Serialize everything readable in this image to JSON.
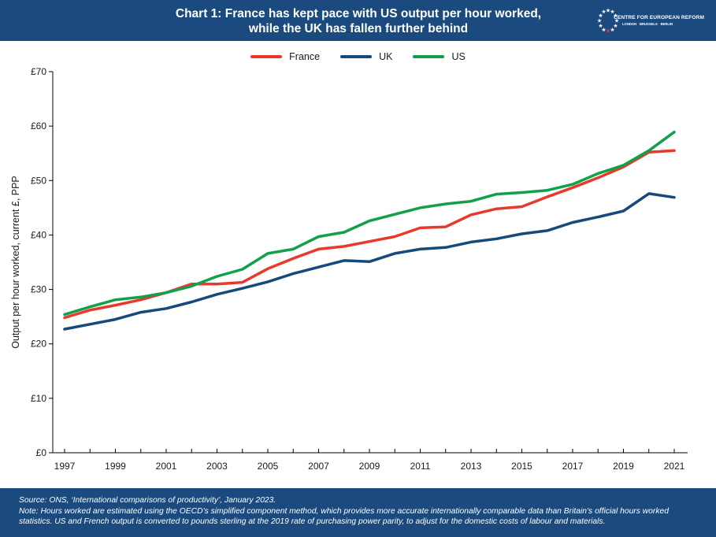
{
  "header": {
    "title_line1": "Chart 1: France has kept pace with US output per hour worked,",
    "title_line2": "while the UK has fallen further behind",
    "logo_name": "CENTRE FOR EUROPEAN REFORM",
    "logo_cities": [
      "LONDON",
      "BRUSSELS",
      "BERLIN"
    ]
  },
  "footer": {
    "source": "Source: ONS, ‘International comparisons of productivity’, January 2023.",
    "note": "Note: Hours worked are estimated using the OECD’s simplified component method, which provides more accurate internationally comparable data than Britain’s official hours worked statistics. US and French output is converted to pounds sterling at the 2019 rate of purchasing power parity, to adjust for the domestic costs of labour and materials."
  },
  "chart_data": {
    "type": "line",
    "title": "Chart 1: France has kept pace with US output per hour worked, while the UK has fallen further behind",
    "xlabel": "",
    "ylabel": "Output per hour worked, current £, PPP",
    "x": [
      1997,
      1998,
      1999,
      2000,
      2001,
      2002,
      2003,
      2004,
      2005,
      2006,
      2007,
      2008,
      2009,
      2010,
      2011,
      2012,
      2013,
      2014,
      2015,
      2016,
      2017,
      2018,
      2019,
      2020,
      2021
    ],
    "xticks": [
      "1997",
      "1999",
      "2001",
      "2003",
      "2005",
      "2007",
      "2009",
      "2011",
      "2013",
      "2015",
      "2017",
      "2019",
      "2021"
    ],
    "xlim": [
      1997,
      2021
    ],
    "ylim": [
      0,
      70
    ],
    "yticks": [
      0,
      10,
      20,
      30,
      40,
      50,
      60,
      70
    ],
    "ytick_labels": [
      "£0",
      "£10",
      "£20",
      "£30",
      "£40",
      "£50",
      "£60",
      "£70"
    ],
    "grid": false,
    "legend_position": "top-center",
    "series": [
      {
        "name": "France",
        "color": "#e8392d",
        "values": [
          24.8,
          26.2,
          27.1,
          28.1,
          29.4,
          31.0,
          31.0,
          31.3,
          33.8,
          35.7,
          37.4,
          37.9,
          38.8,
          39.7,
          41.3,
          41.5,
          43.7,
          44.8,
          45.2,
          47.0,
          48.7,
          50.5,
          52.5,
          55.2,
          55.5
        ]
      },
      {
        "name": "UK",
        "color": "#16497c",
        "values": [
          22.7,
          23.6,
          24.5,
          25.8,
          26.5,
          27.7,
          29.1,
          30.2,
          31.4,
          32.9,
          34.1,
          35.3,
          35.1,
          36.6,
          37.4,
          37.7,
          38.7,
          39.3,
          40.2,
          40.8,
          42.3,
          43.3,
          44.4,
          47.6,
          46.9
        ]
      },
      {
        "name": "US",
        "color": "#13a04a",
        "values": [
          25.4,
          26.8,
          28.1,
          28.6,
          29.4,
          30.6,
          32.4,
          33.7,
          36.6,
          37.4,
          39.7,
          40.5,
          42.6,
          43.8,
          45.0,
          45.7,
          46.2,
          47.5,
          47.8,
          48.2,
          49.3,
          51.3,
          52.8,
          55.5,
          58.9
        ]
      }
    ]
  }
}
